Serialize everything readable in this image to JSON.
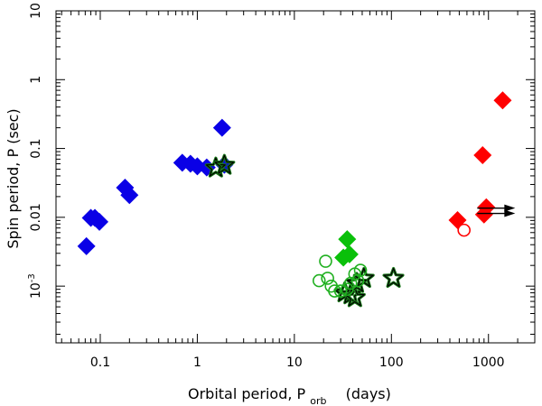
{
  "chart_data": {
    "type": "scatter",
    "title": "",
    "xlabel": "Orbital period, P",
    "xlabel_sub": "orb",
    "xlabel_unit": "(days)",
    "ylabel": "Spin period, P  (sec)",
    "xscale": "log",
    "yscale": "log",
    "xlim": [
      0.035,
      3000
    ],
    "ylim": [
      0.00015,
      10
    ],
    "x_ticks": [
      {
        "value": 0.1,
        "label": "0.1"
      },
      {
        "value": 1,
        "label": "1"
      },
      {
        "value": 10,
        "label": "10"
      },
      {
        "value": 100,
        "label": "100"
      },
      {
        "value": 1000,
        "label": "1000"
      }
    ],
    "y_ticks": [
      {
        "value": 0.001,
        "label": "10",
        "sup": "-3"
      },
      {
        "value": 0.01,
        "label": "0.01",
        "sup": ""
      },
      {
        "value": 0.1,
        "label": "0.1",
        "sup": ""
      },
      {
        "value": 1,
        "label": "1",
        "sup": ""
      },
      {
        "value": 10,
        "label": "10",
        "sup": ""
      }
    ],
    "grid": false,
    "legend": "none",
    "series": [
      {
        "marker": "diamond",
        "color": "#0a00e6",
        "points": [
          [
            0.072,
            0.0038
          ],
          [
            0.08,
            0.0098
          ],
          [
            0.088,
            0.0098
          ],
          [
            0.098,
            0.0086
          ],
          [
            0.18,
            0.027
          ],
          [
            0.2,
            0.021
          ],
          [
            0.7,
            0.062
          ],
          [
            0.85,
            0.06
          ],
          [
            1.0,
            0.055
          ],
          [
            1.25,
            0.053
          ],
          [
            1.9,
            0.058
          ],
          [
            1.8,
            0.2
          ]
        ]
      },
      {
        "marker": "star",
        "color": "#000000",
        "fill": "#1a7a1a",
        "points": [
          [
            1.55,
            0.052
          ],
          [
            1.9,
            0.057
          ],
          [
            33,
            0.0008
          ],
          [
            38,
            0.00075
          ],
          [
            42,
            0.00068
          ],
          [
            44,
            0.0011
          ],
          [
            52,
            0.0013
          ],
          [
            105,
            0.0013
          ]
        ]
      },
      {
        "marker": "diamond",
        "color": "#0ac00a",
        "points": [
          [
            35,
            0.0048
          ],
          [
            32,
            0.0026
          ],
          [
            37,
            0.0029
          ]
        ]
      },
      {
        "marker": "open-circle",
        "color": "#20b020",
        "points": [
          [
            21,
            0.0023
          ],
          [
            18,
            0.0012
          ],
          [
            22,
            0.0013
          ],
          [
            24,
            0.001
          ],
          [
            26,
            0.00085
          ],
          [
            30,
            0.00085
          ],
          [
            35,
            0.0009
          ],
          [
            42,
            0.0015
          ],
          [
            48,
            0.0017
          ],
          [
            38,
            0.0011
          ],
          [
            45,
            0.0012
          ]
        ]
      },
      {
        "marker": "diamond",
        "color": "#ff0000",
        "points": [
          [
            1400,
            0.5
          ],
          [
            870,
            0.08
          ],
          [
            950,
            0.014
          ],
          [
            900,
            0.011
          ],
          [
            480,
            0.0091
          ]
        ]
      },
      {
        "marker": "open-circle",
        "color": "#ff0000",
        "points": [
          [
            560,
            0.0065
          ]
        ]
      },
      {
        "marker": "arrow-right",
        "color": "#000000",
        "points": [
          [
            950,
            0.0136
          ],
          [
            950,
            0.0114
          ]
        ]
      }
    ]
  }
}
